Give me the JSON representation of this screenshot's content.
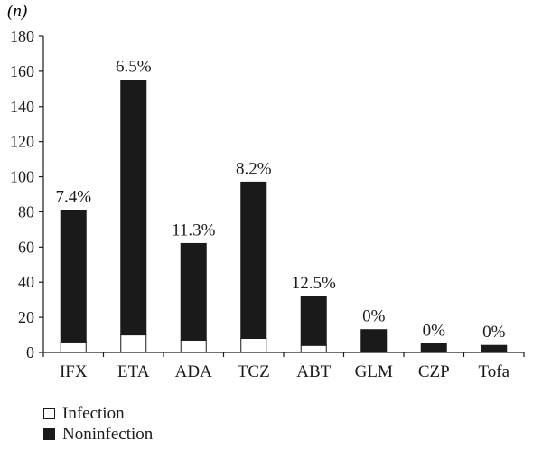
{
  "chart_data": {
    "type": "bar",
    "stacked": true,
    "y_unit_label": "(n)",
    "categories": [
      "IFX",
      "ETA",
      "ADA",
      "TCZ",
      "ABT",
      "GLM",
      "CZP",
      "Tofa"
    ],
    "series": [
      {
        "name": "Infection",
        "values": [
          6,
          10,
          7,
          8,
          4,
          0,
          0,
          0
        ],
        "color": "#ffffff"
      },
      {
        "name": "Noninfection",
        "values": [
          75,
          145,
          55,
          89,
          28,
          13,
          5,
          4
        ],
        "color": "#1a1a1a"
      }
    ],
    "bar_labels": [
      "7.4%",
      "6.5%",
      "11.3%",
      "8.2%",
      "12.5%",
      "0%",
      "0%",
      "0%"
    ],
    "ylim": [
      0,
      180
    ],
    "yticks": [
      0,
      20,
      40,
      60,
      80,
      100,
      120,
      140,
      160,
      180
    ],
    "grid": false,
    "legend_position": "bottom-left"
  }
}
